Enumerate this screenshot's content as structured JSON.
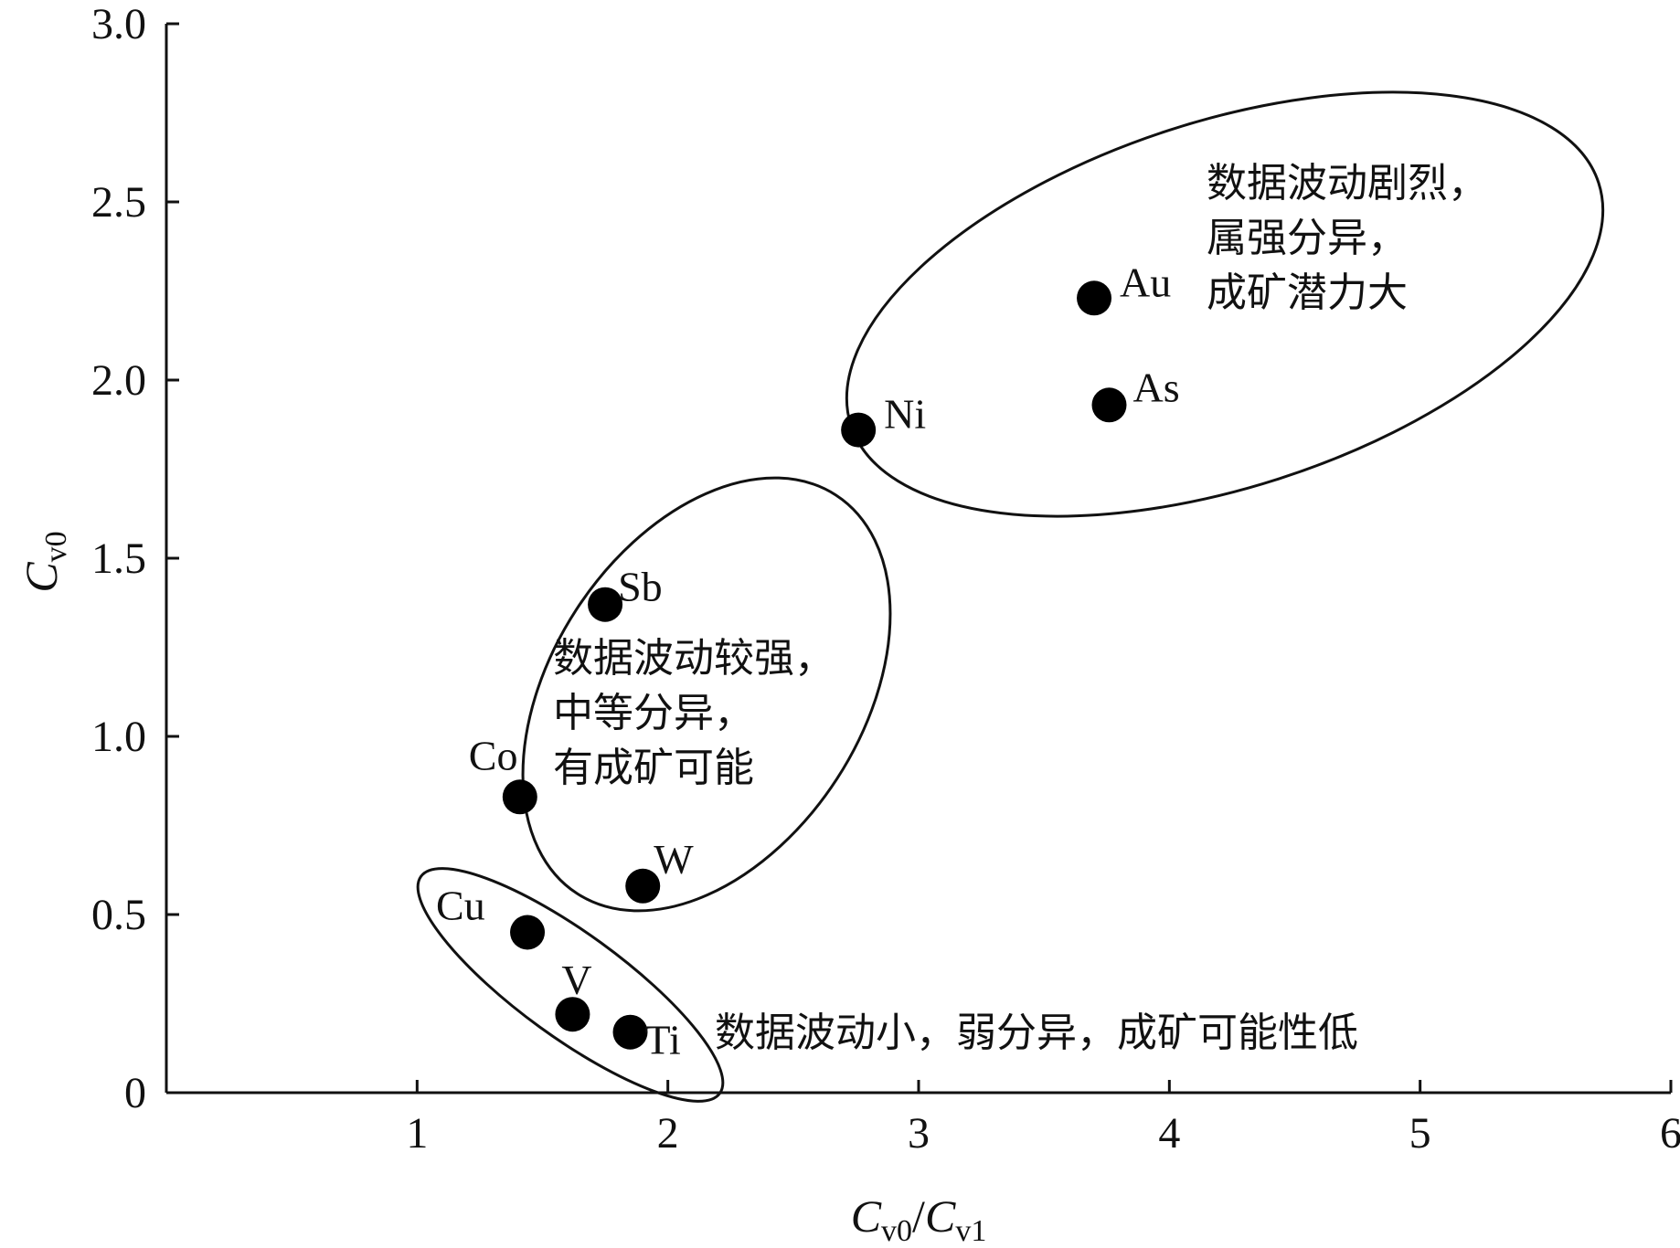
{
  "chart_data": {
    "type": "scatter",
    "title": "",
    "xlabel": "C_v0/C_v1",
    "ylabel": "C_v0",
    "xlim": [
      0,
      6
    ],
    "ylim": [
      0,
      3.0
    ],
    "x_ticks": [
      "1",
      "2",
      "3",
      "4",
      "5",
      "6"
    ],
    "y_ticks": [
      "0",
      "0.5",
      "1.0",
      "1.5",
      "2.0",
      "2.5",
      "3.0"
    ],
    "grid": false,
    "point_color": "#000000",
    "points": [
      {
        "label": "Au",
        "x": 3.7,
        "y": 2.23
      },
      {
        "label": "As",
        "x": 3.76,
        "y": 1.93
      },
      {
        "label": "Ni",
        "x": 2.76,
        "y": 1.86
      },
      {
        "label": "Sb",
        "x": 1.75,
        "y": 1.37
      },
      {
        "label": "Co",
        "x": 1.41,
        "y": 0.83
      },
      {
        "label": "W",
        "x": 1.9,
        "y": 0.58
      },
      {
        "label": "Cu",
        "x": 1.44,
        "y": 0.45
      },
      {
        "label": "V",
        "x": 1.62,
        "y": 0.22
      },
      {
        "label": "Ti",
        "x": 1.85,
        "y": 0.17
      }
    ],
    "groups": [
      {
        "annotation": [
          "数据波动剧烈，",
          "属强分异，",
          "成矿潜力大"
        ]
      },
      {
        "annotation": [
          "数据波动较强，",
          "中等分异，",
          "有成矿可能"
        ]
      },
      {
        "annotation": [
          "数据波动小，弱分异，成矿可能性低"
        ]
      }
    ]
  }
}
